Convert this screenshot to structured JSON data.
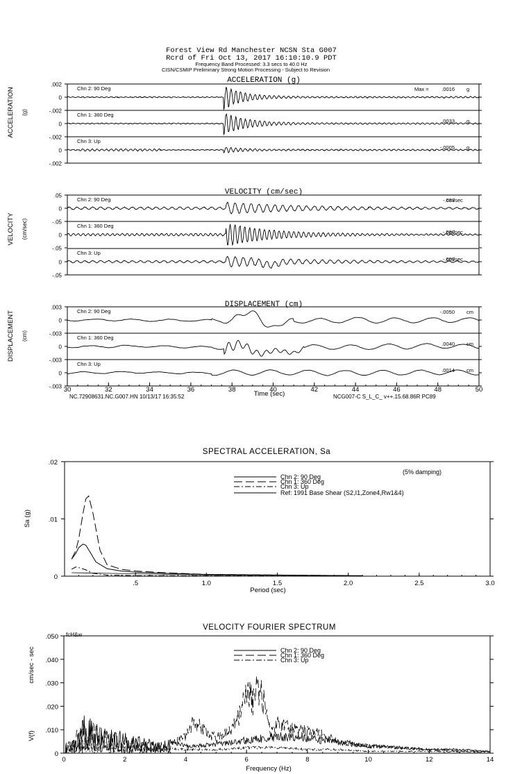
{
  "header": {
    "line1": "Forest View Rd Manchester     NCSN Sta G007",
    "line2": "Rcrd of Fri Oct 13, 2017 16:10:10.9 PDT",
    "line3": "Frequency Band Processed: 3.3 secs to 40.0 Hz",
    "line4": "CISN/CSMIP Preliminary Strong Motion Processing - Subject to Revision"
  },
  "time_panels": {
    "channels": [
      "Chn 2: 90 Deg",
      "Chn 1: 360 Deg",
      "Chn 3: Up"
    ],
    "x_ticks": [
      "30",
      "32",
      "34",
      "36",
      "38",
      "40",
      "42",
      "44",
      "46",
      "48",
      "50"
    ],
    "xlabel": "Time (sec)",
    "footer_left": "NC.72908631.NC.G007.HN 10/13/17 16:35:52",
    "footer_right": "NCG007-C  S_L_C_  v++.15.68.86R PC89",
    "acceleration": {
      "title": "ACCELERATION (g)",
      "side_label": "ACCELERATION",
      "unit_label": "(g)",
      "y_ticks": [
        ".002",
        "0",
        "-.002"
      ],
      "max_prefix": "Max = ",
      "peaks": [
        ".0016",
        ".0033",
        "-.0005"
      ],
      "unit": "g"
    },
    "velocity": {
      "title": "VELOCITY (cm/sec)",
      "side_label": "VELOCITY",
      "unit_label": "(cm/sec)",
      "y_ticks": [
        ".05",
        "0",
        "-.05"
      ],
      "peaks": [
        "-.033",
        "-.080",
        "-.009"
      ],
      "unit": "cm/sec"
    },
    "displacement": {
      "title": "DISPLACEMENT (cm)",
      "side_label": "DISPLACEMENT",
      "unit_label": "(cm)",
      "y_ticks": [
        ".003",
        "0",
        "-.003"
      ],
      "peaks": [
        "-.0050",
        ".0040",
        ".0014"
      ],
      "unit": "cm"
    }
  },
  "spectral": {
    "title": "SPECTRAL ACCELERATION, Sa",
    "ylabel": "Sa (g)",
    "xlabel": "Period (sec)",
    "damping": "(5% damping)",
    "y_ticks": [
      ".02",
      ".01",
      "0"
    ],
    "x_ticks": [
      ".5",
      "1.0",
      "1.5",
      "2.0",
      "2.5",
      "3.0"
    ],
    "legend": [
      "Chn 2: 90 Deg",
      "Chn 1: 360 Deg",
      "Chn 3: Up",
      "Ref: 1991 Base Shear (S2,I1,Zone4,Rw1&4)"
    ]
  },
  "fourier": {
    "title": "VELOCITY FOURIER SPECTRUM",
    "corner_label": "fcH&w",
    "ylabel_top": "cm/sec - sec",
    "ylabel_bottom": "V(f)",
    "xlabel": "Frequency (Hz)",
    "y_ticks": [
      ".050",
      ".040",
      ".030",
      ".020",
      ".010",
      "0"
    ],
    "x_ticks": [
      "0",
      "2",
      "4",
      "6",
      "8",
      "10",
      "12",
      "14"
    ],
    "legend": [
      "Chn 2: 90 Deg",
      "Chn 1: 360 Deg",
      "Chn 3: Up"
    ]
  },
  "chart_data": [
    {
      "type": "line",
      "title": "ACCELERATION (g)",
      "xlabel": "Time (sec)",
      "xlim": [
        30,
        50
      ],
      "ylim": [
        -0.002,
        0.002
      ],
      "series": [
        {
          "name": "Chn 2: 90 Deg",
          "peak": 0.0016
        },
        {
          "name": "Chn 1: 360 Deg",
          "peak": 0.0033
        },
        {
          "name": "Chn 3: Up",
          "peak": -0.0005
        }
      ]
    },
    {
      "type": "line",
      "title": "VELOCITY (cm/sec)",
      "xlabel": "Time (sec)",
      "xlim": [
        30,
        50
      ],
      "ylim": [
        -0.05,
        0.05
      ],
      "series": [
        {
          "name": "Chn 2: 90 Deg",
          "peak": -0.033
        },
        {
          "name": "Chn 1: 360 Deg",
          "peak": -0.08
        },
        {
          "name": "Chn 3: Up",
          "peak": -0.009
        }
      ]
    },
    {
      "type": "line",
      "title": "DISPLACEMENT (cm)",
      "xlabel": "Time (sec)",
      "xlim": [
        30,
        50
      ],
      "ylim": [
        -0.003,
        0.003
      ],
      "series": [
        {
          "name": "Chn 2: 90 Deg",
          "peak": -0.005
        },
        {
          "name": "Chn 1: 360 Deg",
          "peak": 0.004
        },
        {
          "name": "Chn 3: Up",
          "peak": 0.0014
        }
      ]
    },
    {
      "type": "line",
      "title": "SPECTRAL ACCELERATION, Sa",
      "xlabel": "Period (sec)",
      "ylabel": "Sa (g)",
      "xlim": [
        0,
        3.0
      ],
      "ylim": [
        0,
        0.02
      ],
      "series": [
        {
          "name": "Chn 2: 90 Deg",
          "x": [
            0.05,
            0.08,
            0.1,
            0.13,
            0.15,
            0.18,
            0.22,
            0.3,
            0.4,
            0.5,
            0.7,
            1.0,
            1.5,
            2.0
          ],
          "y": [
            0.003,
            0.004,
            0.005,
            0.0056,
            0.0054,
            0.0042,
            0.0025,
            0.0013,
            0.0009,
            0.0007,
            0.0005,
            0.0003,
            0.0002,
            0.0001
          ]
        },
        {
          "name": "Chn 1: 360 Deg",
          "x": [
            0.05,
            0.08,
            0.1,
            0.13,
            0.15,
            0.17,
            0.2,
            0.25,
            0.3,
            0.4,
            0.5,
            0.7,
            1.0,
            1.5,
            2.0
          ],
          "y": [
            0.003,
            0.0045,
            0.0065,
            0.011,
            0.0135,
            0.014,
            0.011,
            0.0045,
            0.002,
            0.0012,
            0.0009,
            0.0006,
            0.0003,
            0.0002,
            0.0001
          ]
        },
        {
          "name": "Chn 3: Up",
          "x": [
            0.05,
            0.08,
            0.1,
            0.15,
            0.2,
            0.3,
            0.5,
            1.0,
            2.0
          ],
          "y": [
            0.0012,
            0.0016,
            0.0015,
            0.0011,
            0.0005,
            0.0002,
            0.0001,
            5e-05,
            2e-05
          ]
        }
      ]
    },
    {
      "type": "line",
      "title": "VELOCITY FOURIER SPECTRUM",
      "xlabel": "Frequency (Hz)",
      "ylabel": "V(f) cm/sec - sec",
      "xlim": [
        0,
        14
      ],
      "ylim": [
        0,
        0.05
      ],
      "series": [
        {
          "name": "Chn 2: 90 Deg",
          "x": [
            0.2,
            0.5,
            0.8,
            1.0,
            1.3,
            1.6,
            2.0,
            2.5,
            3.0,
            3.5,
            4.0,
            4.5,
            5.0,
            5.5,
            6.0,
            6.5,
            7.0,
            7.5,
            8.0,
            8.5,
            9.0,
            9.5,
            10.0,
            11.0,
            12.0,
            13.0,
            14.0
          ],
          "y": [
            0.004,
            0.01,
            0.021,
            0.015,
            0.012,
            0.011,
            0.009,
            0.007,
            0.006,
            0.006,
            0.004,
            0.004,
            0.005,
            0.006,
            0.007,
            0.008,
            0.009,
            0.009,
            0.008,
            0.007,
            0.006,
            0.005,
            0.004,
            0.003,
            0.002,
            0.002,
            0.001
          ]
        },
        {
          "name": "Chn 1: 360 Deg",
          "x": [
            0.2,
            0.5,
            0.8,
            1.0,
            1.3,
            1.6,
            2.0,
            2.5,
            3.0,
            3.5,
            4.0,
            4.3,
            4.5,
            4.8,
            5.0,
            5.5,
            5.8,
            6.0,
            6.2,
            6.4,
            6.6,
            6.8,
            7.0,
            7.5,
            8.0,
            8.5,
            9.0,
            9.5,
            10.0,
            11.0,
            12.0,
            13.0,
            14.0
          ],
          "y": [
            0.005,
            0.012,
            0.016,
            0.013,
            0.011,
            0.01,
            0.008,
            0.006,
            0.005,
            0.005,
            0.009,
            0.018,
            0.014,
            0.01,
            0.009,
            0.012,
            0.022,
            0.036,
            0.028,
            0.037,
            0.025,
            0.012,
            0.016,
            0.013,
            0.012,
            0.01,
            0.007,
            0.005,
            0.004,
            0.003,
            0.002,
            0.001,
            0.001
          ]
        },
        {
          "name": "Chn 3: Up",
          "x": [
            0.2,
            0.5,
            1.0,
            2.0,
            3.0,
            4.0,
            5.0,
            6.0,
            7.0,
            8.0,
            9.0,
            10.0,
            12.0,
            14.0
          ],
          "y": [
            0.002,
            0.004,
            0.005,
            0.004,
            0.003,
            0.002,
            0.002,
            0.003,
            0.003,
            0.002,
            0.002,
            0.001,
            0.001,
            0.0005
          ]
        }
      ]
    }
  ]
}
